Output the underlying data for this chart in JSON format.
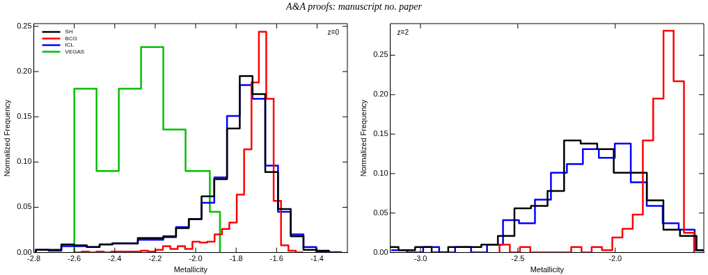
{
  "chart_data": [
    {
      "type": "step",
      "title": "A&A proofs: manuscript no. paper",
      "xlabel": "Metallicity",
      "ylabel": "Normalized Frequency",
      "annotations": [
        "z=0"
      ],
      "legend": "top left",
      "xlim": [
        -2.8,
        -1.25
      ],
      "ylim": [
        0,
        0.253
      ],
      "xticks": [
        {
          "value": -2.8,
          "label": "-2.8"
        },
        {
          "value": -2.6,
          "label": "-2.6"
        },
        {
          "value": -2.4,
          "label": "-2.4"
        },
        {
          "value": -2.2,
          "label": "-2.2"
        },
        {
          "value": -2.0,
          "label": "-2.0"
        },
        {
          "value": -1.8,
          "label": "-1.8"
        },
        {
          "value": -1.6,
          "label": "-1.6"
        },
        {
          "value": -1.4,
          "label": "-1.4"
        }
      ],
      "yticks": [
        {
          "value": 0,
          "label": "0.00"
        },
        {
          "value": 0.05,
          "label": "0.05"
        },
        {
          "value": 0.1,
          "label": "0.10"
        },
        {
          "value": 0.15,
          "label": "0.15"
        },
        {
          "value": 0.2,
          "label": "0.20"
        },
        {
          "value": 0.25,
          "label": "0.25"
        }
      ],
      "series": [
        {
          "name": "SH",
          "color": "#000000",
          "x": [
            -2.79,
            -2.79,
            -2.727,
            -2.664,
            -2.601,
            -2.538,
            -2.475,
            -2.412,
            -2.349,
            -2.286,
            -2.223,
            -2.16,
            -2.097,
            -2.034,
            -1.971,
            -1.908,
            -1.845,
            -1.782,
            -1.719,
            -1.656,
            -1.593,
            -1.53,
            -1.467,
            -1.404,
            -1.341,
            -1.278
          ],
          "values": [
            0,
            0.003,
            0.003,
            0.009,
            0.008,
            0.006,
            0.009,
            0.01,
            0.01,
            0.016,
            0.016,
            0.018,
            0.027,
            0.037,
            0.062,
            0.081,
            0.137,
            0.195,
            0.175,
            0.089,
            0.048,
            0.018,
            0.003,
            0.002,
            0.0,
            0
          ]
        },
        {
          "name": "BCG",
          "color": "#ff0000",
          "x": [
            -2.6,
            -2.6,
            -2.5635,
            -2.527,
            -2.4905,
            -2.454,
            -2.4175,
            -2.381,
            -2.3445,
            -2.308,
            -2.2715,
            -2.235,
            -2.1985,
            -2.162,
            -2.1255,
            -2.089,
            -2.0525,
            -2.016,
            -1.9795,
            -1.943,
            -1.9065,
            -1.87,
            -1.8335,
            -1.797,
            -1.7605,
            -1.724,
            -1.6875,
            -1.651,
            -1.6145,
            -1.578,
            -1.5415,
            -1.505,
            -1.4685
          ],
          "values": [
            0,
            0.0,
            0.001,
            0.0,
            0.001,
            0.0,
            0.001,
            0.001,
            0.001,
            0.001,
            0.002,
            0.001,
            0.003,
            0.007,
            0.004,
            0.007,
            0.004,
            0.012,
            0.011,
            0.012,
            0.02,
            0.026,
            0.033,
            0.064,
            0.114,
            0.188,
            0.244,
            0.17,
            0.057,
            0.008,
            0.002,
            0.0,
            0
          ]
        },
        {
          "name": "ICL",
          "color": "#0000ff",
          "x": [
            -2.79,
            -2.79,
            -2.727,
            -2.664,
            -2.601,
            -2.538,
            -2.475,
            -2.412,
            -2.349,
            -2.286,
            -2.223,
            -2.16,
            -2.097,
            -2.034,
            -1.971,
            -1.908,
            -1.845,
            -1.782,
            -1.719,
            -1.656,
            -1.593,
            -1.53,
            -1.467,
            -1.404,
            -1.341,
            -1.278
          ],
          "values": [
            0,
            0.003,
            0.002,
            0.007,
            0.007,
            0.006,
            0.009,
            0.01,
            0.01,
            0.014,
            0.014,
            0.017,
            0.028,
            0.037,
            0.055,
            0.083,
            0.151,
            0.185,
            0.17,
            0.096,
            0.045,
            0.02,
            0.006,
            0.001,
            0.0,
            0
          ]
        },
        {
          "name": "VEGAS",
          "color": "#00c000",
          "x": [
            -2.6,
            -2.6,
            -2.49,
            -2.38,
            -2.27,
            -2.16,
            -2.05,
            -1.93,
            -1.88
          ],
          "values": [
            0,
            0.181,
            0.09,
            0.181,
            0.227,
            0.136,
            0.09,
            0.045,
            0
          ]
        }
      ]
    },
    {
      "type": "step",
      "xlabel": "Metallicity",
      "ylabel": "Normalized Frequency",
      "annotations": [
        "z=2"
      ],
      "xlim": [
        -3.155,
        -1.545
      ],
      "ylim": [
        0,
        0.29
      ],
      "xticks": [
        {
          "value": -3.0,
          "label": "-3.0"
        },
        {
          "value": -2.5,
          "label": "-2.5"
        },
        {
          "value": -2.0,
          "label": "-2.0"
        }
      ],
      "yticks": [
        {
          "value": 0,
          "label": "0.00"
        },
        {
          "value": 0.05,
          "label": "0.05"
        },
        {
          "value": 0.1,
          "label": "0.10"
        },
        {
          "value": 0.15,
          "label": "0.15"
        },
        {
          "value": 0.2,
          "label": "0.20"
        },
        {
          "value": 0.25,
          "label": "0.25"
        }
      ],
      "series": [
        {
          "color": "#000000",
          "x": [
            -3.155,
            -3.1125,
            -3.07,
            -3.0275,
            -2.985,
            -2.9425,
            -2.9,
            -2.8575,
            -2.815,
            -2.7725,
            -2.73,
            -2.6875,
            -2.645,
            -2.6025,
            -2.56,
            -2.5175,
            -2.475,
            -2.4325,
            -2.39,
            -2.3475,
            -2.305,
            -2.2625,
            -2.22,
            -2.1775,
            -2.135,
            -2.0925,
            -2.05,
            -2.0075,
            -1.965,
            -1.9225,
            -1.88,
            -1.8375,
            -1.795,
            -1.7525,
            -1.71,
            -1.6675,
            -1.625,
            -1.5825,
            -1.545
          ],
          "values": [
            0.007,
            0.003,
            0.003,
            0.007,
            0.007,
            0.0,
            0.0,
            0.007,
            0.007,
            0.007,
            0.007,
            0.01,
            0.01,
            0.021,
            0.021,
            0.056,
            0.056,
            0.059,
            0.059,
            0.078,
            0.078,
            0.142,
            0.142,
            0.138,
            0.138,
            0.131,
            0.131,
            0.101,
            0.101,
            0.101,
            0.101,
            0.066,
            0.066,
            0.029,
            0.029,
            0.021,
            0.021,
            0.003,
            0.003
          ]
        },
        {
          "color": "#ff0000",
          "x": [
            -2.594,
            -2.594,
            -2.541,
            -2.489,
            -2.436,
            -2.384,
            -2.331,
            -2.278,
            -2.226,
            -2.173,
            -2.121,
            -2.068,
            -2.015,
            -1.963,
            -1.91,
            -1.858,
            -1.805,
            -1.752,
            -1.7,
            -1.647,
            -1.595
          ],
          "values": [
            0,
            0.01,
            0.0,
            0.007,
            0.0,
            0.0,
            0.0,
            0.0,
            0.007,
            0.0,
            0.007,
            0.003,
            0.019,
            0.03,
            0.048,
            0.142,
            0.195,
            0.281,
            0.217,
            0.025,
            0
          ]
        },
        {
          "color": "#0000ff",
          "x": [
            -3.15,
            -3.068,
            -2.986,
            -2.904,
            -2.822,
            -2.74,
            -2.658,
            -2.576,
            -2.494,
            -2.412,
            -2.33,
            -2.248,
            -2.166,
            -2.084,
            -2.002,
            -1.92,
            -1.838,
            -1.756,
            -1.674,
            -1.592,
            -1.55
          ],
          "values": [
            0.003,
            0.0,
            0.007,
            0.0,
            0.007,
            0.0,
            0.01,
            0.041,
            0.037,
            0.067,
            0.101,
            0.112,
            0.131,
            0.12,
            0.138,
            0.089,
            0.059,
            0.037,
            0.029,
            0.003,
            0.003
          ]
        }
      ]
    }
  ]
}
